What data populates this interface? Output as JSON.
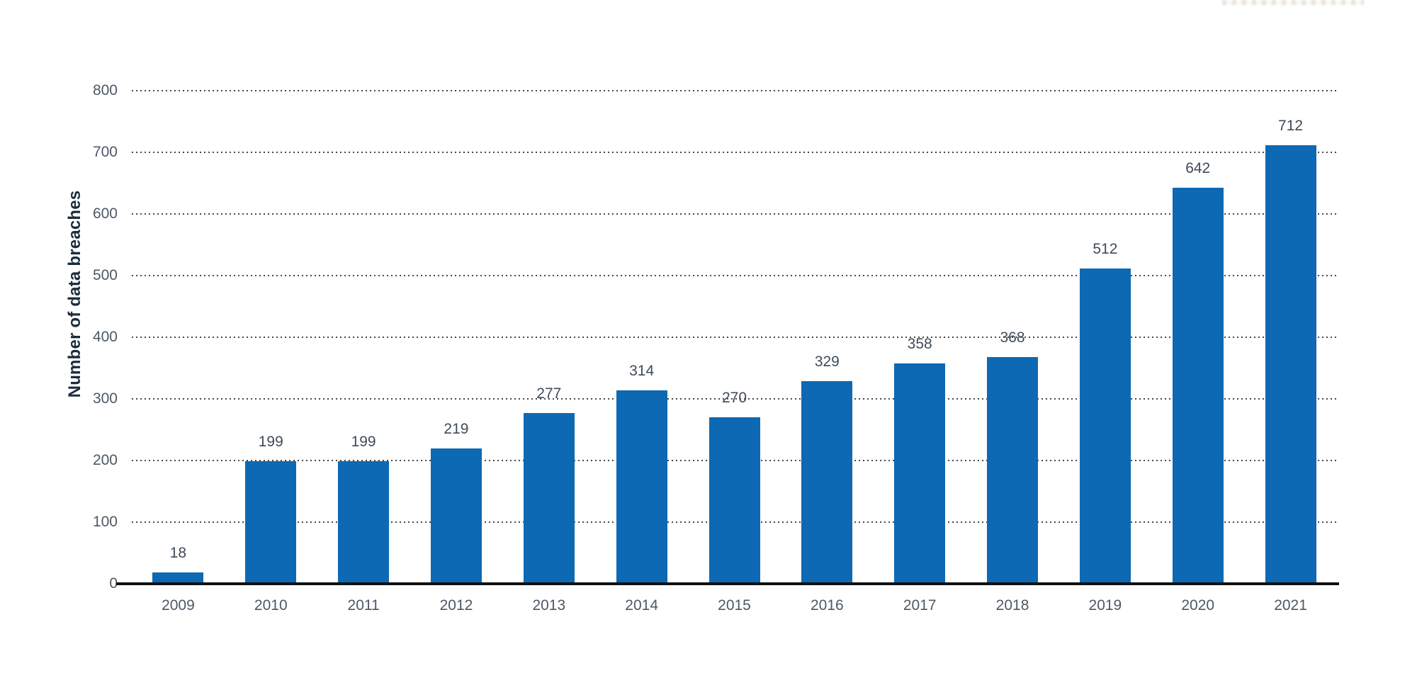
{
  "page": {
    "background": "#ffffff"
  },
  "chart_data": {
    "type": "bar",
    "title": "",
    "xlabel": "",
    "ylabel": "Number of data breaches",
    "categories": [
      "2009",
      "2010",
      "2011",
      "2012",
      "2013",
      "2014",
      "2015",
      "2016",
      "2017",
      "2018",
      "2019",
      "2020",
      "2021"
    ],
    "values": [
      18,
      199,
      199,
      219,
      277,
      314,
      270,
      329,
      358,
      368,
      512,
      642,
      712
    ],
    "value_labels_shown": true,
    "ylim": [
      0,
      800
    ],
    "yticks": [
      0,
      100,
      200,
      300,
      400,
      500,
      600,
      700,
      800
    ],
    "grid": "horizontal-dotted",
    "legend": "none",
    "colors": {
      "bar": "#0d69b3",
      "axis_title": "#1c2c3c",
      "tick_label": "#4d5866",
      "value_label": "#3f4b59",
      "gridline": "#474747",
      "baseline": "#111111"
    }
  }
}
